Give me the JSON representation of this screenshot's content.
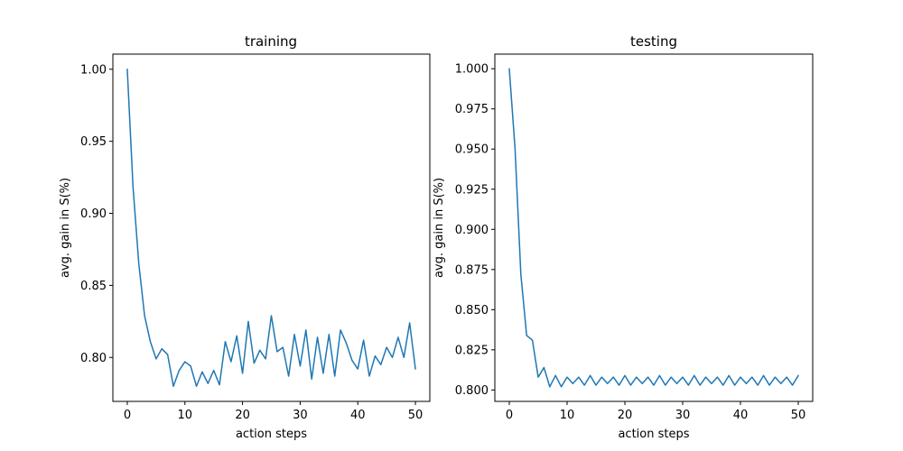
{
  "chart_data": [
    {
      "type": "line",
      "title": "training",
      "xlabel": "action steps",
      "ylabel": "avg. gain in S(%)",
      "xlim": [
        -2.5,
        52.5
      ],
      "ylim": [
        0.7695,
        1.0105
      ],
      "xticks": [
        0,
        10,
        20,
        30,
        40,
        50
      ],
      "xtick_labels": [
        "0",
        "10",
        "20",
        "30",
        "40",
        "50"
      ],
      "yticks": [
        0.8,
        0.85,
        0.9,
        0.95,
        1.0
      ],
      "ytick_labels": [
        "0.80",
        "0.85",
        "0.90",
        "0.95",
        "1.00"
      ],
      "grid": false,
      "color": "#1f77b4",
      "series": [
        {
          "x": [
            0,
            1,
            2,
            3,
            4,
            5,
            6,
            7,
            8,
            9,
            10,
            11,
            12,
            13,
            14,
            15,
            16,
            17,
            18,
            19,
            20,
            21,
            22,
            23,
            24,
            25,
            26,
            27,
            28,
            29,
            30,
            31,
            32,
            33,
            34,
            35,
            36,
            37,
            38,
            39,
            40,
            41,
            42,
            43,
            44,
            45,
            46,
            47,
            48,
            49,
            50
          ],
          "values": [
            1.0,
            0.918,
            0.865,
            0.829,
            0.811,
            0.799,
            0.806,
            0.802,
            0.78,
            0.791,
            0.797,
            0.794,
            0.78,
            0.79,
            0.782,
            0.791,
            0.781,
            0.811,
            0.797,
            0.815,
            0.789,
            0.825,
            0.796,
            0.805,
            0.799,
            0.829,
            0.804,
            0.807,
            0.787,
            0.816,
            0.794,
            0.819,
            0.785,
            0.814,
            0.789,
            0.816,
            0.787,
            0.819,
            0.81,
            0.798,
            0.792,
            0.812,
            0.787,
            0.801,
            0.795,
            0.807,
            0.8,
            0.814,
            0.8,
            0.824,
            0.792
          ]
        }
      ]
    },
    {
      "type": "line",
      "title": "testing",
      "xlabel": "action steps",
      "ylabel": "avg. gain in S(%)",
      "xlim": [
        -2.5,
        52.5
      ],
      "ylim": [
        0.7929,
        1.0091
      ],
      "xticks": [
        0,
        10,
        20,
        30,
        40,
        50
      ],
      "xtick_labels": [
        "0",
        "10",
        "20",
        "30",
        "40",
        "50"
      ],
      "yticks": [
        0.8,
        0.825,
        0.85,
        0.875,
        0.9,
        0.925,
        0.95,
        0.975,
        1.0
      ],
      "ytick_labels": [
        "0.800",
        "0.825",
        "0.850",
        "0.875",
        "0.900",
        "0.925",
        "0.950",
        "0.975",
        "1.000"
      ],
      "grid": false,
      "color": "#1f77b4",
      "series": [
        {
          "x": [
            0,
            1,
            2,
            3,
            4,
            5,
            6,
            7,
            8,
            9,
            10,
            11,
            12,
            13,
            14,
            15,
            16,
            17,
            18,
            19,
            20,
            21,
            22,
            23,
            24,
            25,
            26,
            27,
            28,
            29,
            30,
            31,
            32,
            33,
            34,
            35,
            36,
            37,
            38,
            39,
            40,
            41,
            42,
            43,
            44,
            45,
            46,
            47,
            48,
            49,
            50
          ],
          "values": [
            1.0,
            0.95,
            0.872,
            0.834,
            0.831,
            0.808,
            0.814,
            0.802,
            0.809,
            0.802,
            0.808,
            0.804,
            0.808,
            0.803,
            0.809,
            0.803,
            0.808,
            0.804,
            0.808,
            0.803,
            0.809,
            0.803,
            0.808,
            0.804,
            0.808,
            0.803,
            0.809,
            0.803,
            0.808,
            0.804,
            0.808,
            0.803,
            0.809,
            0.803,
            0.808,
            0.804,
            0.808,
            0.803,
            0.809,
            0.803,
            0.808,
            0.804,
            0.808,
            0.803,
            0.809,
            0.803,
            0.808,
            0.804,
            0.808,
            0.803,
            0.809
          ]
        }
      ]
    }
  ]
}
